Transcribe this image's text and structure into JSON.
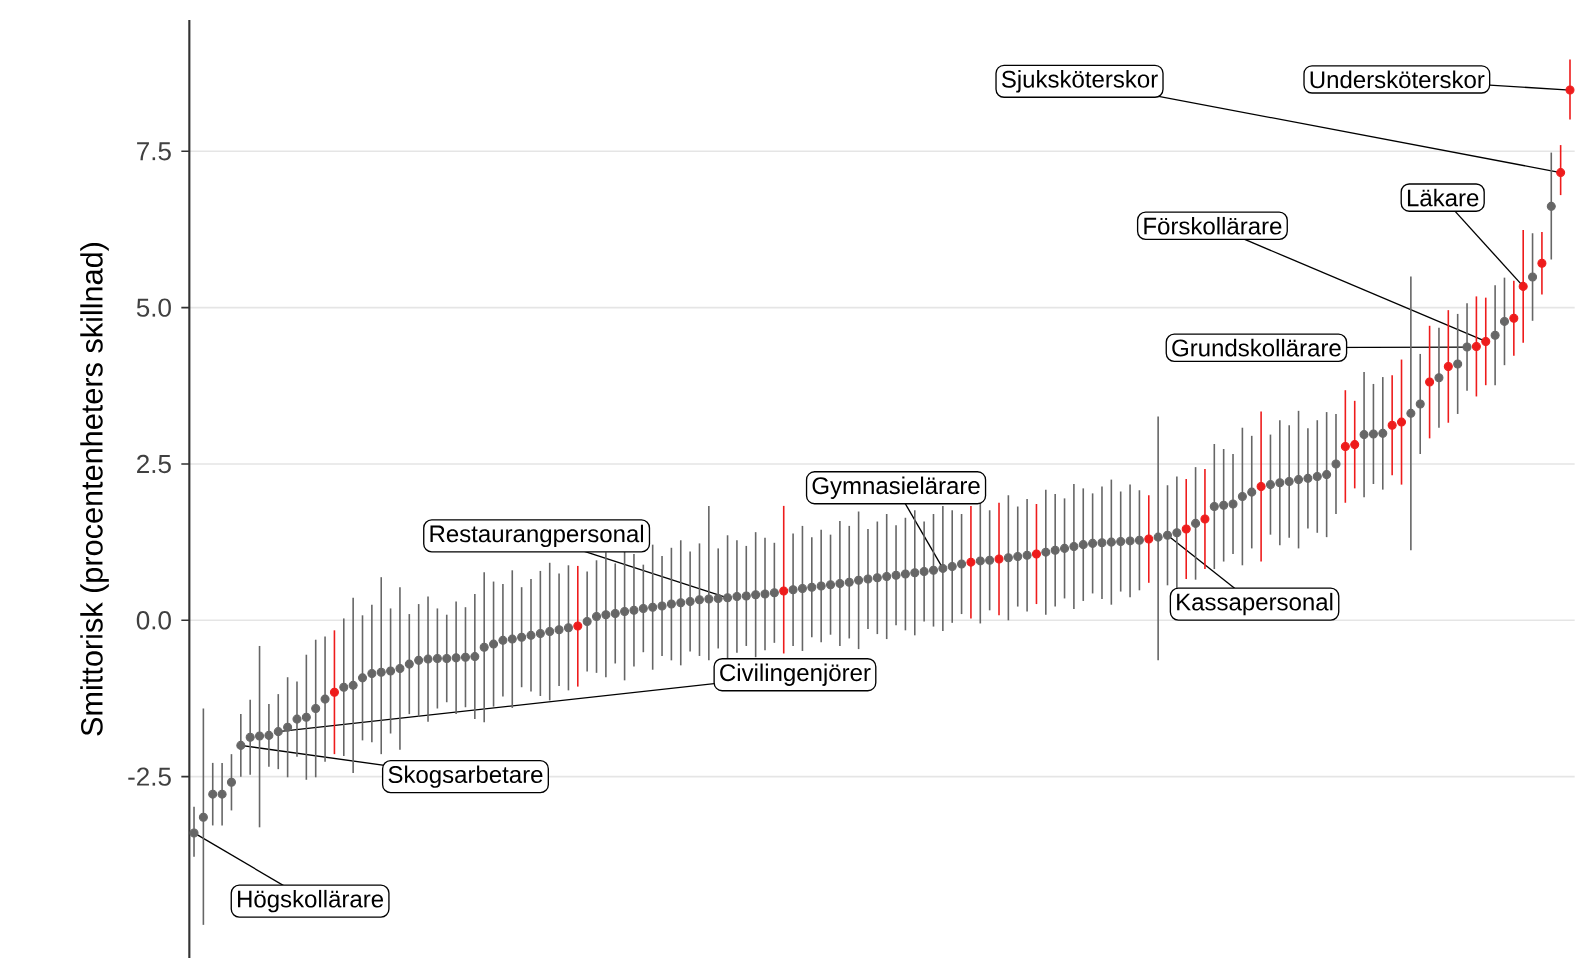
{
  "chart_data": {
    "type": "scatter",
    "ylabel": "Smittorisk (procentenheters skillnad)",
    "categories": [
      null,
      null,
      null,
      null,
      null,
      null,
      null,
      null,
      null,
      null,
      null,
      null,
      null,
      null,
      null,
      null,
      null,
      null,
      null,
      null,
      null,
      null,
      null,
      null,
      null,
      null,
      null,
      null,
      null,
      null,
      null,
      null,
      null,
      null,
      null,
      null,
      null,
      null,
      null,
      null,
      null,
      null,
      null,
      null,
      null,
      null,
      null,
      null,
      null,
      null,
      null,
      null,
      null,
      null,
      null,
      null,
      null,
      null,
      null,
      null,
      null,
      null,
      null,
      null,
      null,
      null,
      null,
      null,
      null,
      null,
      null,
      null,
      null,
      null,
      null,
      null,
      null,
      null,
      null,
      null,
      null,
      null,
      null,
      null,
      null,
      null,
      null,
      null,
      null,
      null,
      null,
      null,
      null,
      null,
      null,
      null,
      null,
      null,
      null,
      null,
      null,
      null,
      null,
      null,
      null,
      null,
      null,
      null,
      null,
      null,
      null,
      null,
      null,
      null,
      null,
      null,
      null,
      null,
      null,
      null,
      null,
      null,
      null,
      null,
      null,
      null,
      null,
      null,
      null,
      null,
      null,
      null,
      null,
      null,
      null,
      null,
      null,
      null,
      null,
      null,
      null,
      null,
      null,
      null,
      null,
      null,
      null,
      null
    ],
    "values": [
      -3.4,
      -3.15,
      -2.78,
      -2.78,
      -2.59,
      -2.0,
      -1.87,
      -1.85,
      -1.84,
      -1.78,
      -1.71,
      -1.58,
      -1.55,
      -1.41,
      -1.26,
      -1.15,
      -1.07,
      -1.04,
      -0.92,
      -0.85,
      -0.83,
      -0.81,
      -0.77,
      -0.7,
      -0.64,
      -0.62,
      -0.61,
      -0.61,
      -0.6,
      -0.59,
      -0.58,
      -0.43,
      -0.38,
      -0.32,
      -0.3,
      -0.27,
      -0.24,
      -0.21,
      -0.18,
      -0.15,
      -0.12,
      -0.09,
      -0.02,
      0.06,
      0.09,
      0.11,
      0.14,
      0.16,
      0.19,
      0.21,
      0.23,
      0.26,
      0.28,
      0.3,
      0.33,
      0.34,
      0.35,
      0.36,
      0.38,
      0.39,
      0.41,
      0.42,
      0.44,
      0.47,
      0.49,
      0.51,
      0.53,
      0.55,
      0.57,
      0.59,
      0.61,
      0.64,
      0.66,
      0.68,
      0.7,
      0.72,
      0.74,
      0.76,
      0.78,
      0.8,
      0.83,
      0.86,
      0.9,
      0.93,
      0.95,
      0.96,
      0.98,
      1.0,
      1.02,
      1.04,
      1.06,
      1.09,
      1.12,
      1.15,
      1.18,
      1.21,
      1.23,
      1.24,
      1.25,
      1.26,
      1.27,
      1.28,
      1.3,
      1.33,
      1.36,
      1.4,
      1.46,
      1.55,
      1.62,
      1.82,
      1.84,
      1.86,
      1.98,
      2.05,
      2.14,
      2.17,
      2.2,
      2.22,
      2.25,
      2.27,
      2.3,
      2.33,
      2.5,
      2.78,
      2.81,
      2.97,
      2.98,
      2.99,
      3.12,
      3.17,
      3.31,
      3.46,
      3.81,
      3.88,
      4.06,
      4.1,
      4.37,
      4.38,
      4.46,
      4.56,
      4.78,
      4.83,
      5.34,
      5.49,
      5.71,
      6.62,
      7.16,
      8.48
    ],
    "errors": [
      [
        -3.78,
        -2.98
      ],
      [
        -4.87,
        -1.41
      ],
      0.5,
      0.5,
      0.45,
      0.5,
      0.6,
      [
        -3.31,
        -0.41
      ],
      0.5,
      0.6,
      0.8,
      0.6,
      1.0,
      1.1,
      1.0,
      [
        -2.14,
        -0.16
      ],
      1.1,
      1.4,
      1.0,
      1.1,
      [
        -2.14,
        0.69
      ],
      1.0,
      1.3,
      0.8,
      0.9,
      1.0,
      0.8,
      0.7,
      0.9,
      0.8,
      1.0,
      1.2,
      1.0,
      0.9,
      1.1,
      0.8,
      0.9,
      1.0,
      1.1,
      0.9,
      1.0,
      [
        -1.06,
        0.87
      ],
      0.8,
      0.9,
      1.0,
      0.8,
      1.1,
      0.9,
      0.7,
      1.0,
      0.8,
      0.9,
      1.0,
      0.8,
      0.9,
      [
        -0.64,
        1.83
      ],
      0.8,
      1.0,
      0.9,
      0.8,
      1.0,
      0.9,
      0.8,
      [
        -0.53,
        1.83
      ],
      0.9,
      1.0,
      0.8,
      0.9,
      0.8,
      1.0,
      0.9,
      1.1,
      0.8,
      0.9,
      1.0,
      0.8,
      0.9,
      1.0,
      0.8,
      0.9,
      1.0,
      0.9,
      0.8,
      0.9,
      1.0,
      0.8,
      0.9,
      1.0,
      0.8,
      0.9,
      0.8,
      1.0,
      0.9,
      0.8,
      1.0,
      0.9,
      0.8,
      0.9,
      1.0,
      0.8,
      0.9,
      0.8,
      0.7,
      [
        -0.64,
        3.26
      ],
      0.8,
      0.9,
      0.8,
      0.9,
      0.8,
      1.0,
      0.9,
      0.8,
      1.1,
      0.9,
      1.2,
      0.8,
      1.0,
      0.9,
      1.1,
      0.8,
      0.9,
      1.0,
      0.8,
      0.9,
      0.7,
      1.0,
      0.8,
      0.9,
      0.8,
      1.0,
      [
        1.12,
        5.5
      ],
      0.8,
      0.9,
      0.8,
      0.9,
      0.8,
      0.7,
      0.8,
      0.7,
      0.8,
      0.7,
      0.6,
      0.9,
      0.7,
      0.5,
      [
        5.77,
        7.48
      ],
      [
        6.8,
        7.6
      ],
      [
        8.01,
        8.97
      ]
    ],
    "colors": [
      "#666666",
      "#666666",
      "#666666",
      "#666666",
      "#666666",
      "#666666",
      "#666666",
      "#666666",
      "#666666",
      "#666666",
      "#666666",
      "#666666",
      "#666666",
      "#666666",
      "#666666",
      "#ee1c1c",
      "#666666",
      "#666666",
      "#666666",
      "#666666",
      "#666666",
      "#666666",
      "#666666",
      "#666666",
      "#666666",
      "#666666",
      "#666666",
      "#666666",
      "#666666",
      "#666666",
      "#666666",
      "#666666",
      "#666666",
      "#666666",
      "#666666",
      "#666666",
      "#666666",
      "#666666",
      "#666666",
      "#666666",
      "#666666",
      "#ee1c1c",
      "#666666",
      "#666666",
      "#666666",
      "#666666",
      "#666666",
      "#666666",
      "#666666",
      "#666666",
      "#666666",
      "#666666",
      "#666666",
      "#666666",
      "#666666",
      "#666666",
      "#666666",
      "#666666",
      "#666666",
      "#666666",
      "#666666",
      "#666666",
      "#666666",
      "#ee1c1c",
      "#666666",
      "#666666",
      "#666666",
      "#666666",
      "#666666",
      "#666666",
      "#666666",
      "#666666",
      "#666666",
      "#666666",
      "#666666",
      "#666666",
      "#666666",
      "#666666",
      "#666666",
      "#666666",
      "#666666",
      "#666666",
      "#666666",
      "#ee1c1c",
      "#666666",
      "#666666",
      "#ee1c1c",
      "#666666",
      "#666666",
      "#666666",
      "#ee1c1c",
      "#666666",
      "#666666",
      "#666666",
      "#666666",
      "#666666",
      "#666666",
      "#666666",
      "#666666",
      "#666666",
      "#666666",
      "#666666",
      "#ee1c1c",
      "#666666",
      "#666666",
      "#666666",
      "#ee1c1c",
      "#666666",
      "#ee1c1c",
      "#666666",
      "#666666",
      "#666666",
      "#666666",
      "#666666",
      "#ee1c1c",
      "#666666",
      "#666666",
      "#666666",
      "#666666",
      "#666666",
      "#666666",
      "#666666",
      "#666666",
      "#ee1c1c",
      "#ee1c1c",
      "#666666",
      "#666666",
      "#666666",
      "#ee1c1c",
      "#ee1c1c",
      "#666666",
      "#666666",
      "#ee1c1c",
      "#666666",
      "#ee1c1c",
      "#666666",
      "#666666",
      "#ee1c1c",
      "#ee1c1c",
      "#666666",
      "#666666",
      "#ee1c1c",
      "#ee1c1c",
      "#666666",
      "#ee1c1c",
      "#666666",
      "#ee1c1c",
      "#ee1c1c"
    ],
    "ylim": [
      -5.4,
      9.6
    ],
    "yticks": [
      {
        "value": -2.5,
        "label": "-2.5"
      },
      {
        "value": 0,
        "label": "0.0"
      },
      {
        "value": 2.5,
        "label": "2.5"
      },
      {
        "value": 5,
        "label": "5.0"
      },
      {
        "value": 7.5,
        "label": "7.5"
      }
    ],
    "grid": "y",
    "marker": "circle",
    "tick_labels": "y",
    "annotations": [
      "Högskollärare",
      "Skogsarbetare",
      "Civilingenjörer",
      "Restaurangpersonal",
      "Gymnasielärare",
      "Kassapersonal",
      "Grundskollärare",
      "Förskollärare",
      "Läkare",
      "Sjuksköterskor",
      "Undersköterskor"
    ]
  }
}
